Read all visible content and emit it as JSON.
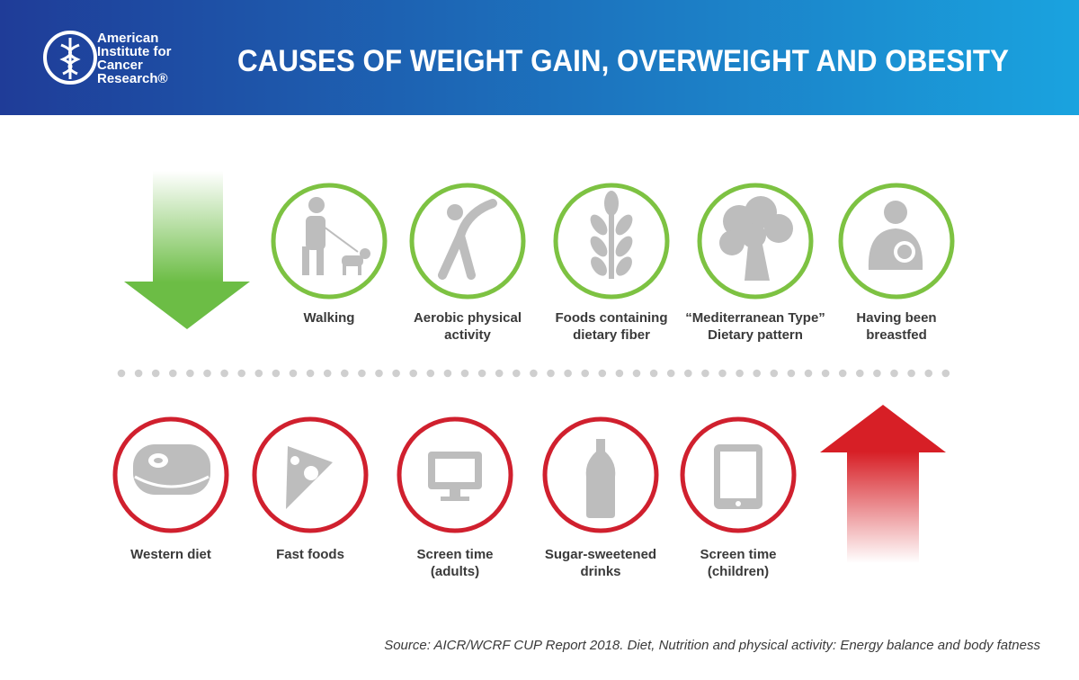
{
  "header": {
    "org": [
      "American",
      "Institute for",
      "Cancer",
      "Research®"
    ],
    "title": "CAUSES OF WEIGHT GAIN, OVERWEIGHT  AND OBESITY"
  },
  "decreasing": {
    "items": [
      {
        "label": [
          "Walking"
        ]
      },
      {
        "label": [
          "Aerobic physical",
          "activity"
        ]
      },
      {
        "label": [
          "Foods containing",
          "dietary fiber"
        ]
      },
      {
        "label": [
          "“Mediterranean Type”",
          "Dietary pattern"
        ]
      },
      {
        "label": [
          "Having been",
          "breastfed"
        ]
      }
    ]
  },
  "increasing": {
    "items": [
      {
        "label": [
          "Western diet"
        ]
      },
      {
        "label": [
          "Fast foods"
        ]
      },
      {
        "label": [
          "Screen time",
          "(adults)"
        ]
      },
      {
        "label": [
          "Sugar-sweetened",
          "drinks"
        ]
      },
      {
        "label": [
          "Screen time",
          "(children)"
        ]
      }
    ]
  },
  "source": "Source: AICR/WCRF CUP Report 2018. Diet, Nutrition and physical activity: Energy balance and body fatness"
}
